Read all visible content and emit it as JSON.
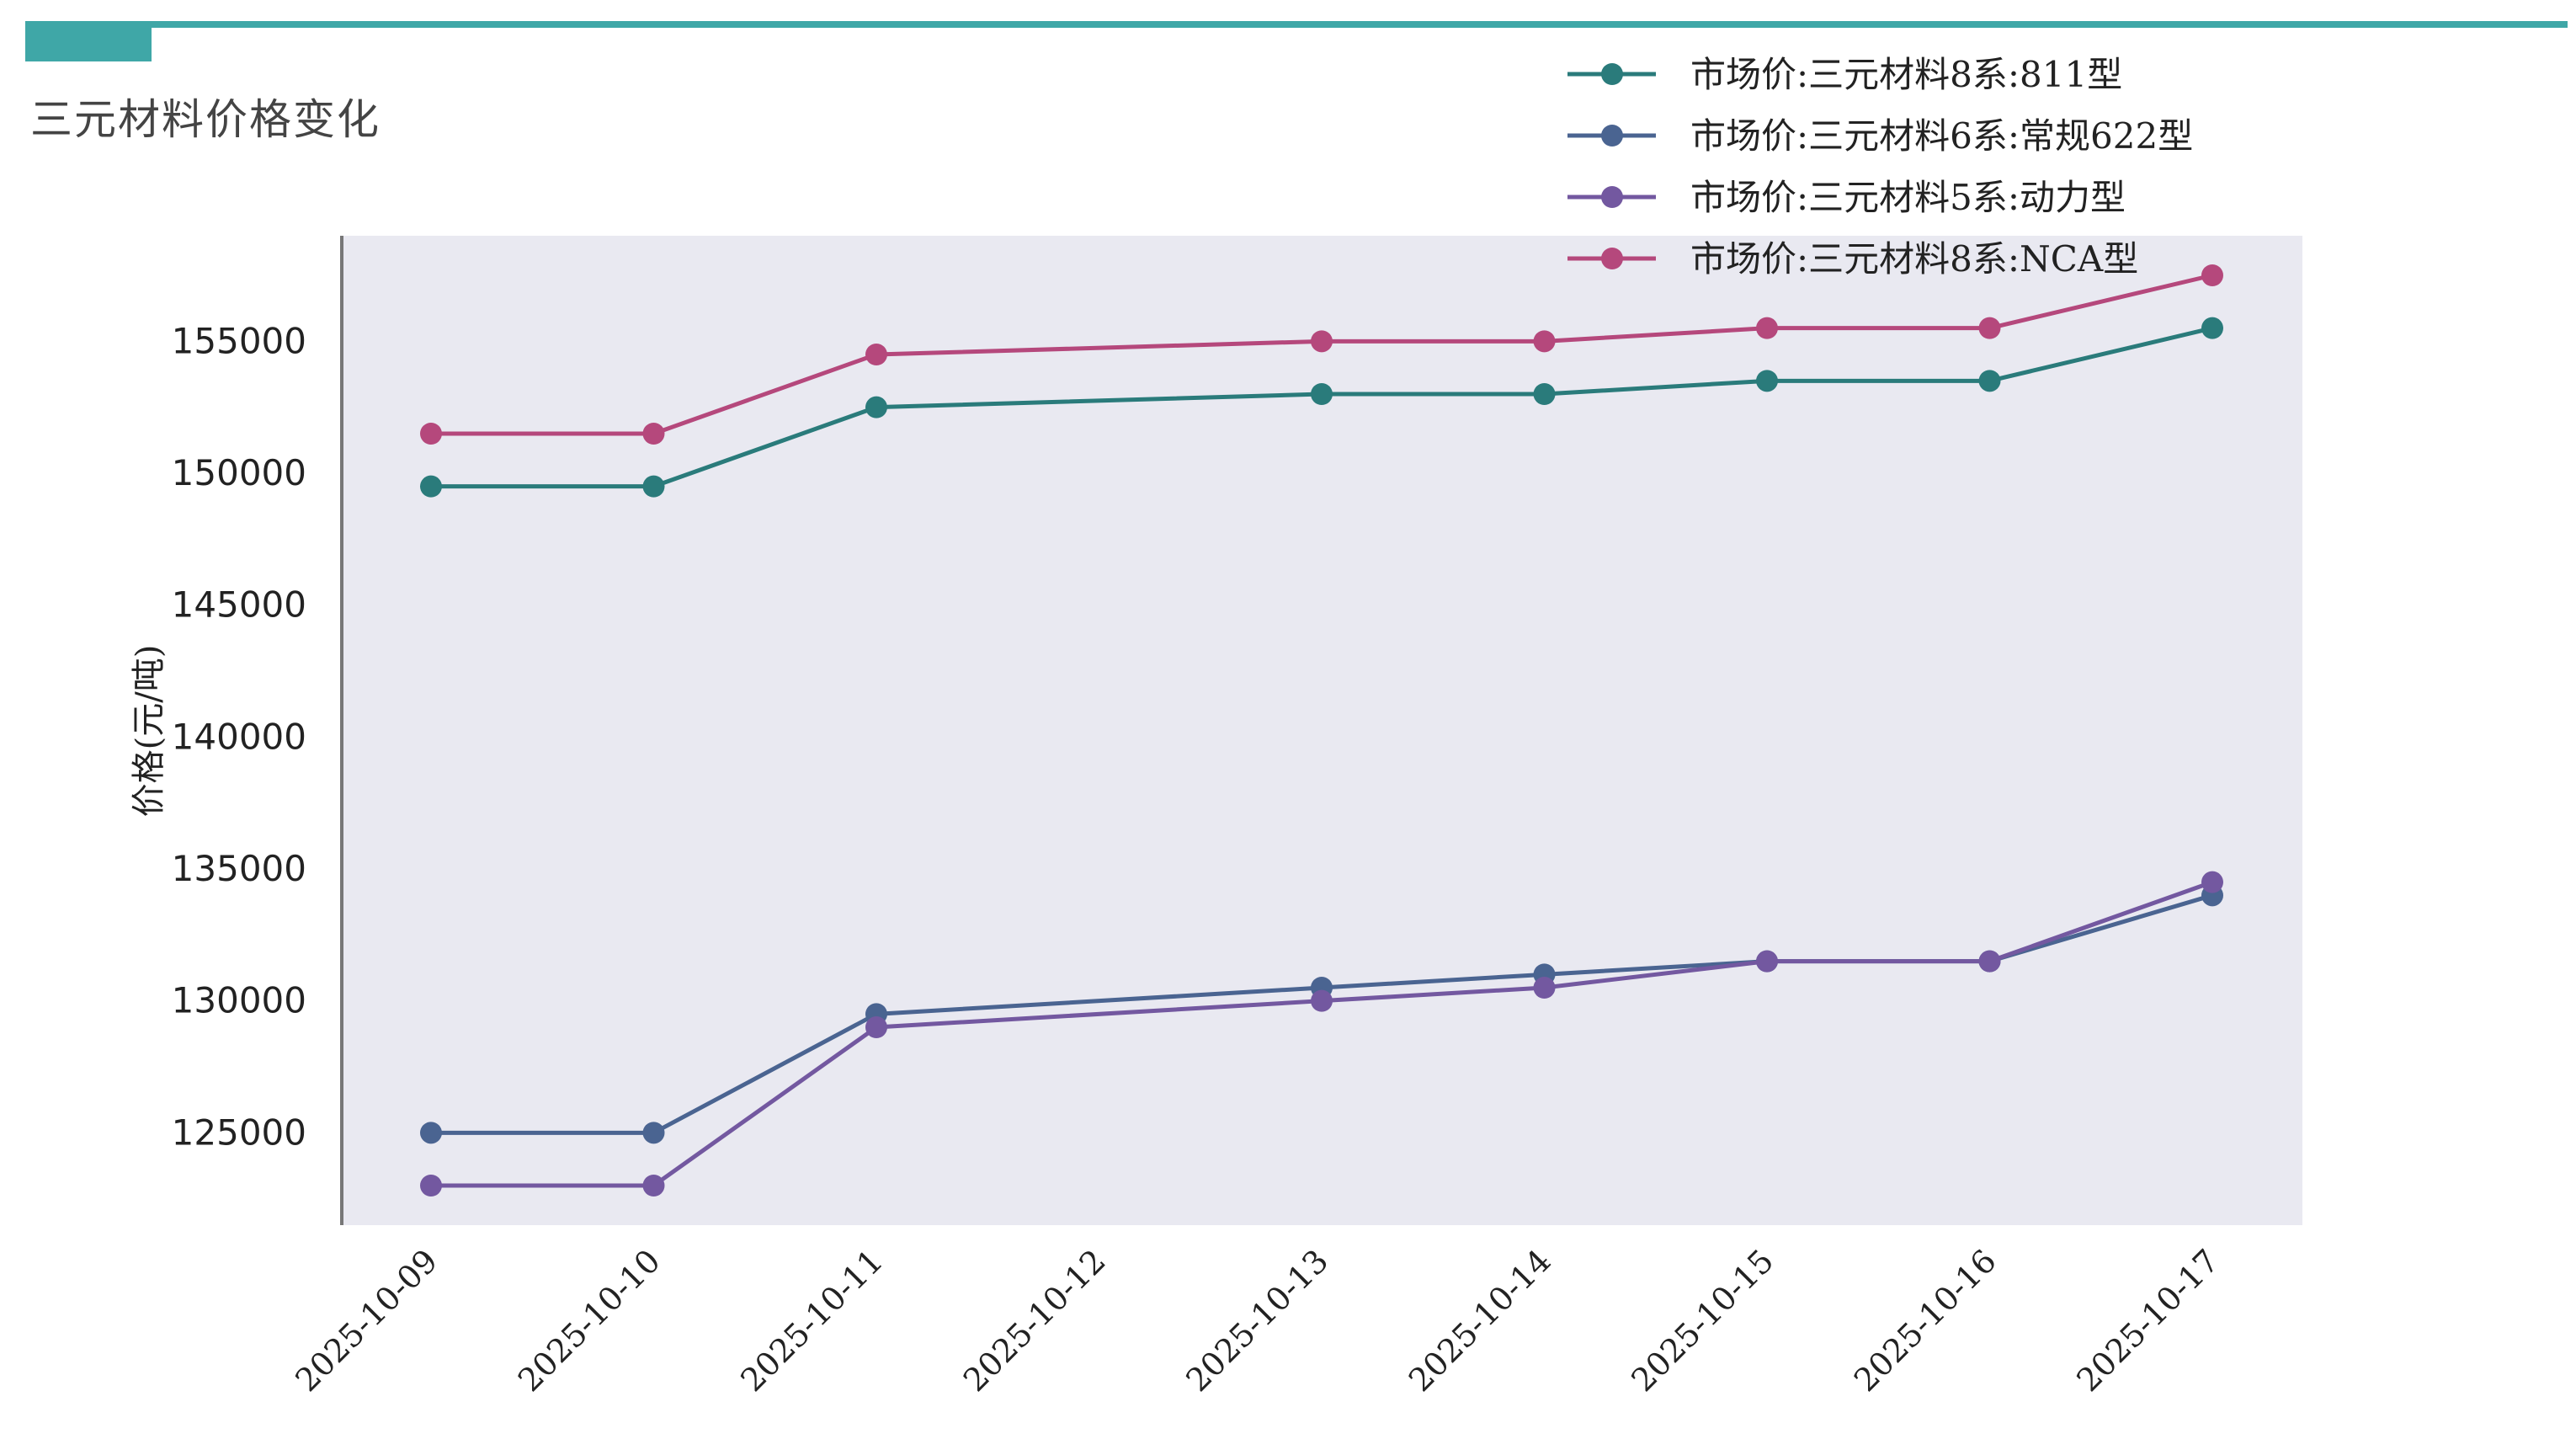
{
  "header": {
    "title": "三元材料价格变化",
    "accent_color": "#3FA7A7"
  },
  "chart_data": {
    "type": "line",
    "title": "",
    "xlabel": "",
    "ylabel": "价格(元/吨)",
    "x": [
      "2025-10-09",
      "2025-10-10",
      "2025-10-11",
      "2025-10-12",
      "2025-10-13",
      "2025-10-14",
      "2025-10-15",
      "2025-10-16",
      "2025-10-17"
    ],
    "ylim": [
      121500,
      159000
    ],
    "yticks": [
      125000,
      130000,
      135000,
      140000,
      145000,
      150000,
      155000
    ],
    "grid": false,
    "legend_position": "top-right",
    "background_color": "#E9E9F1",
    "series": [
      {
        "name": "市场价:三元材料8系:811型",
        "color": "#2A7B7B",
        "values": [
          149500,
          149500,
          152500,
          null,
          153000,
          153000,
          153500,
          153500,
          155500
        ]
      },
      {
        "name": "市场价:三元材料6系:常规622型",
        "color": "#4A6491",
        "values": [
          125000,
          125000,
          129500,
          null,
          130500,
          131000,
          131500,
          131500,
          134000
        ]
      },
      {
        "name": "市场价:三元材料5系:动力型",
        "color": "#7358A0",
        "values": [
          123000,
          123000,
          129000,
          null,
          130000,
          130500,
          131500,
          131500,
          134500
        ]
      },
      {
        "name": "市场价:三元材料8系:NCA型",
        "color": "#B5487C",
        "values": [
          151500,
          151500,
          154500,
          null,
          155000,
          155000,
          155500,
          155500,
          157500
        ]
      }
    ]
  }
}
